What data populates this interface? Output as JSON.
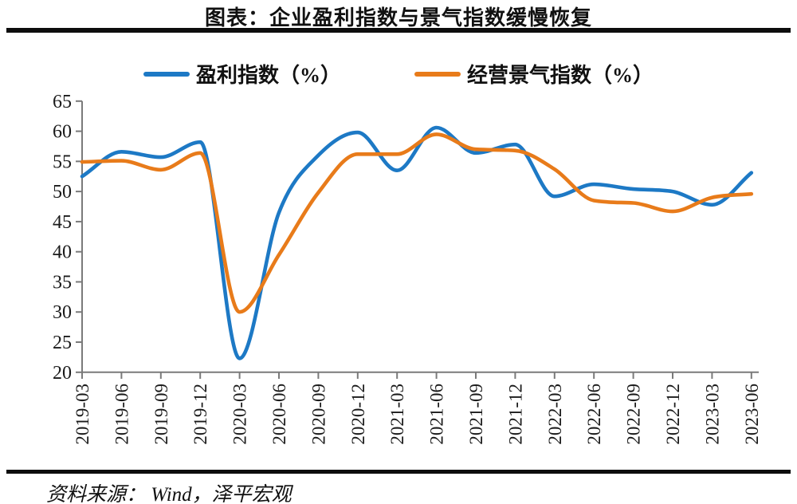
{
  "page": {
    "title": "图表：企业盈利指数与景气指数缓慢恢复",
    "source_label": "资料来源： Wind，泽平宏观"
  },
  "colors": {
    "axis": "#7a7a7a",
    "tick_text": "#1a1a1a",
    "divider_rule": "#0d0d0d",
    "profit_line": "#1d79c5",
    "climate_line": "#e87b1a"
  },
  "chart_data": {
    "type": "line",
    "title": "图表：企业盈利指数与景气指数缓慢恢复",
    "xlabel": "",
    "ylabel": "",
    "ylim": [
      20,
      65
    ],
    "y_ticks": [
      20,
      25,
      30,
      35,
      40,
      45,
      50,
      55,
      60,
      65
    ],
    "grid": false,
    "legend_position": "top",
    "x_tick_rotation": 90,
    "categories": [
      "2019-03",
      "2019-06",
      "2019-09",
      "2019-12",
      "2020-03",
      "2020-06",
      "2020-09",
      "2020-12",
      "2021-03",
      "2021-06",
      "2021-09",
      "2021-12",
      "2022-03",
      "2022-06",
      "2022-09",
      "2022-12",
      "2023-03",
      "2023-06"
    ],
    "series": [
      {
        "name": "盈利指数（%）",
        "color": "#1d79c5",
        "values": [
          52.5,
          56.6,
          55.7,
          58.2,
          22.3,
          46.5,
          56.0,
          59.8,
          53.5,
          60.6,
          56.4,
          57.8,
          49.2,
          51.2,
          50.4,
          50.0,
          47.8,
          53.1
        ]
      },
      {
        "name": "经营景气指数（%）",
        "color": "#e87b1a",
        "values": [
          54.9,
          55.1,
          53.6,
          56.4,
          30.0,
          39.5,
          49.8,
          56.2,
          56.2,
          59.5,
          57.0,
          56.8,
          53.7,
          48.5,
          48.1,
          46.7,
          49.0,
          49.6
        ]
      }
    ]
  }
}
